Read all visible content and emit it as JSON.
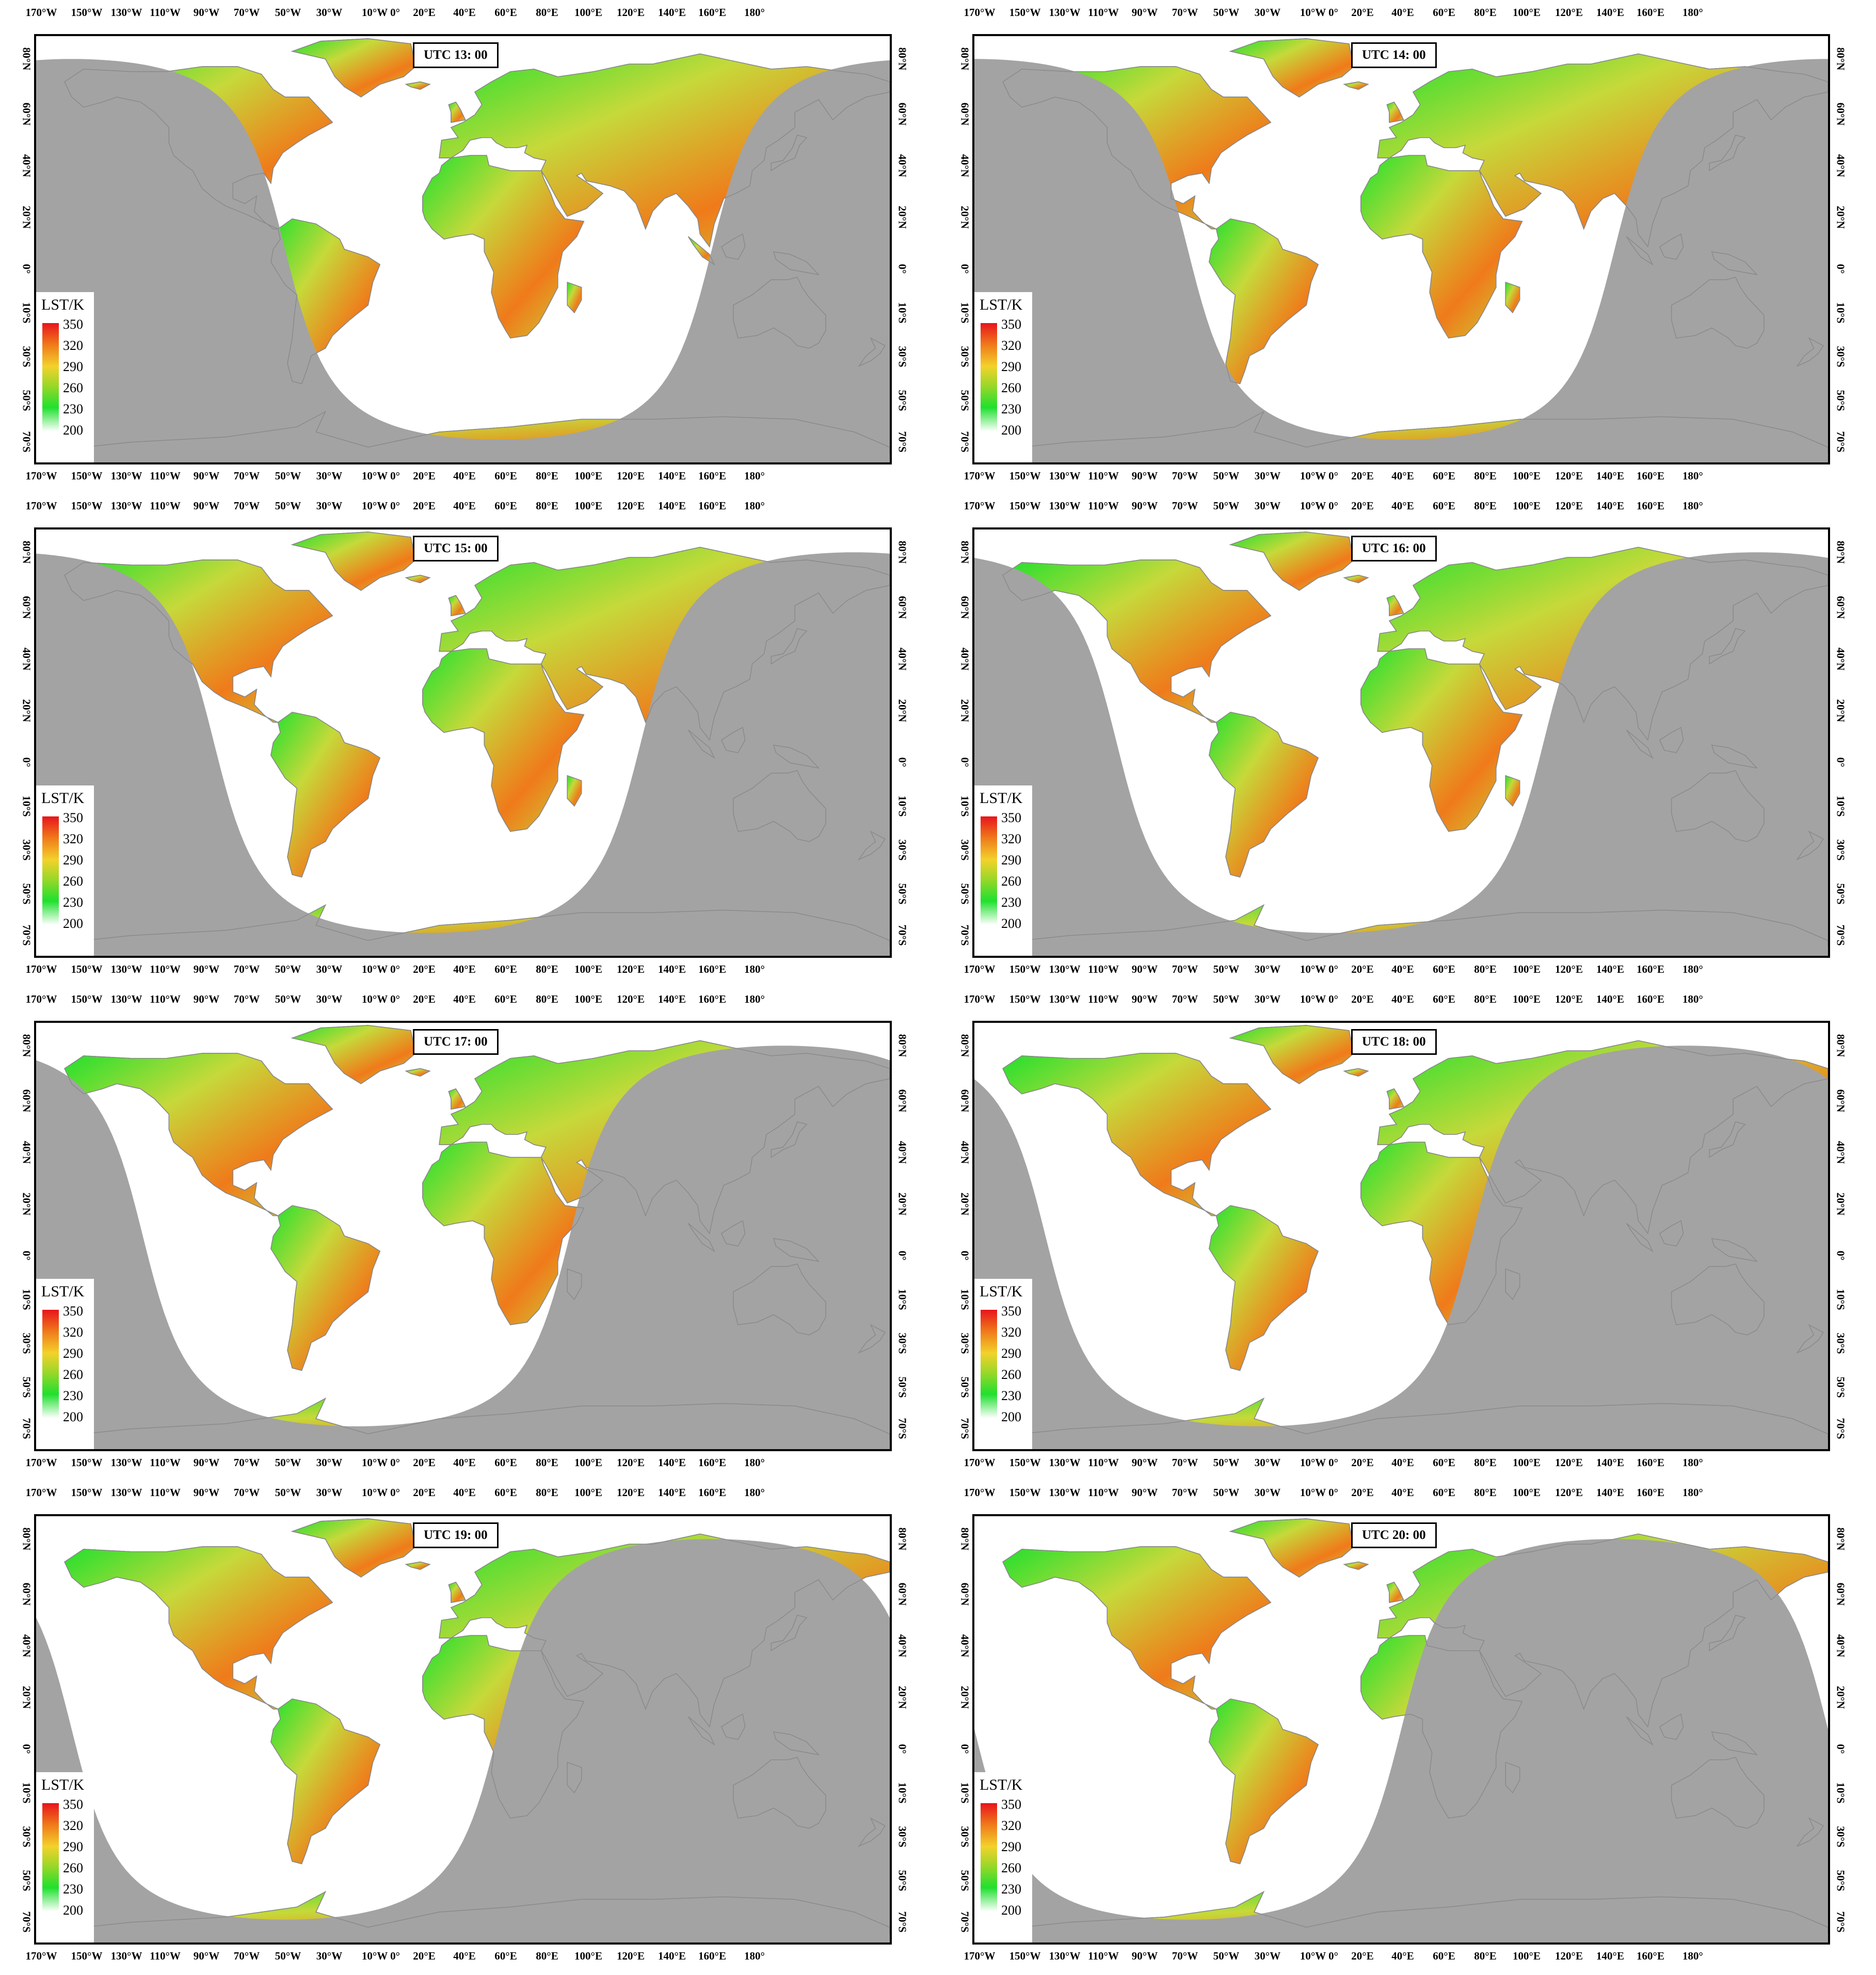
{
  "lon_labels": [
    "170°W",
    "150°W",
    "130°W",
    "110°W",
    "90°W",
    "70°W",
    "50°W",
    "30°W",
    "10°W 0°",
    "20°E",
    "40°E",
    "60°E",
    "80°E",
    "100°E",
    "120°E",
    "140°E",
    "160°E",
    "180°"
  ],
  "lat_labels": [
    "80°N",
    "60°N",
    "40°N",
    "20°N",
    "0°",
    "10°S",
    "30°S",
    "50°S",
    "70°S"
  ],
  "legend": {
    "title": "LST/K",
    "values": [
      "350",
      "320",
      "290",
      "260",
      "230",
      "200"
    ]
  },
  "colors": {
    "night": "#a3a3a3",
    "day_ocean": "#ffffff",
    "land_day": "#c6d93a",
    "hot": "#e8141c",
    "warm": "#f07a1a",
    "cool": "#1fe02e",
    "border": "#6e6e6e"
  },
  "panels": [
    {
      "title": "UTC 13: 00",
      "subsolar_lon": 15
    },
    {
      "title": "UTC 14: 00",
      "subsolar_lon": 0
    },
    {
      "title": "UTC 15: 00",
      "subsolar_lon": -15
    },
    {
      "title": "UTC 16: 00",
      "subsolar_lon": -30
    },
    {
      "title": "UTC 17: 00",
      "subsolar_lon": -45
    },
    {
      "title": "UTC 18: 00",
      "subsolar_lon": -60
    },
    {
      "title": "UTC 19: 00",
      "subsolar_lon": -75
    },
    {
      "title": "UTC 20: 00",
      "subsolar_lon": -90
    }
  ]
}
